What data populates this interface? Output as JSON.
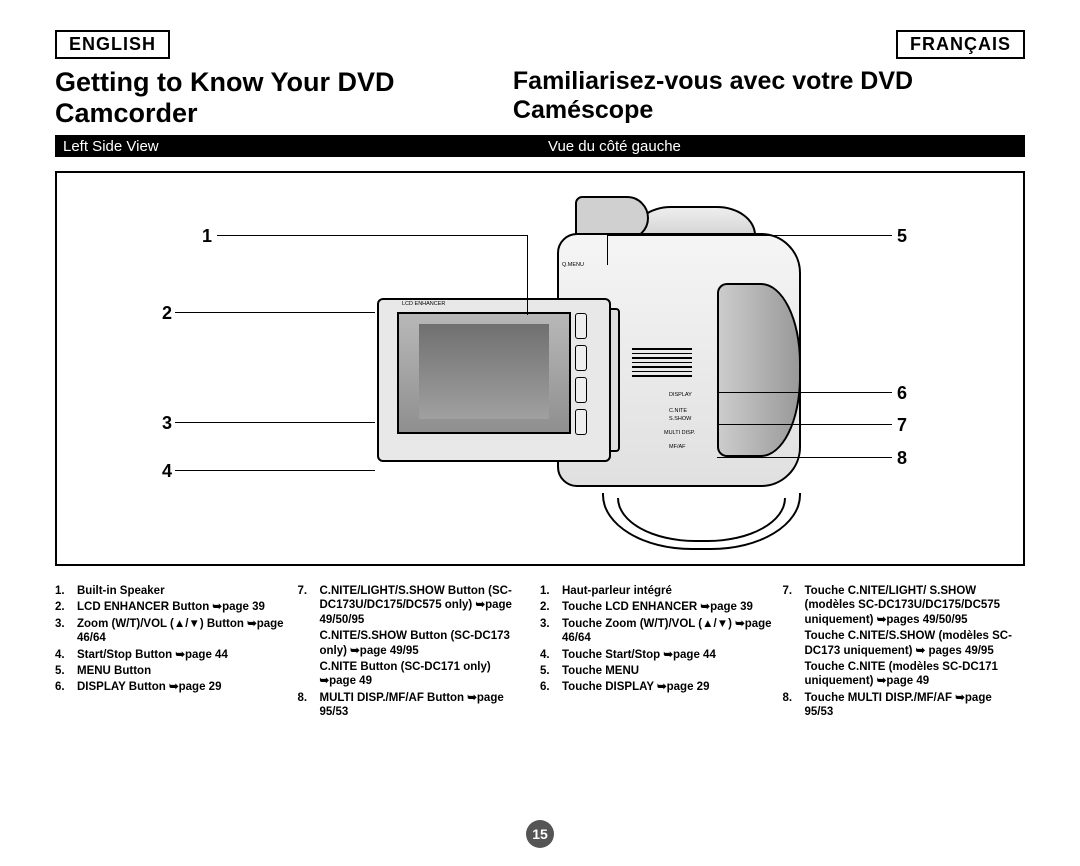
{
  "lang_en": "ENGLISH",
  "lang_fr": "FRANÇAIS",
  "heading_en": "Getting to Know Your DVD Camcorder",
  "heading_fr": "Familiarisez-vous avec votre DVD Caméscope",
  "subhead_en": "Left Side View",
  "subhead_fr": "Vue du côté gauche",
  "page_number": "15",
  "callouts": {
    "n1": "1",
    "n2": "2",
    "n3": "3",
    "n4": "4",
    "n5": "5",
    "n6": "6",
    "n7": "7",
    "n8": "8"
  },
  "tiny": {
    "lcd_enh": "LCD ENHANCER",
    "qmenu": "Q.MENU",
    "display": "DISPLAY",
    "cnite": "C.NITE",
    "sshow": "S.SHOW",
    "multi": "MULTI DISP.",
    "mfaf": "MF/AF"
  },
  "legend_en_col1": [
    {
      "n": "1.",
      "t": "Built-in Speaker"
    },
    {
      "n": "2.",
      "t": "LCD ENHANCER Button ➥page 39"
    },
    {
      "n": "3.",
      "t": "Zoom (W/T)/VOL (▲/▼) Button ➥page 46/64"
    },
    {
      "n": "4.",
      "t": "Start/Stop Button ➥page 44"
    },
    {
      "n": "5.",
      "t": "MENU Button"
    },
    {
      "n": "6.",
      "t": "DISPLAY Button ➥page 29"
    }
  ],
  "legend_en_col2": [
    {
      "n": "7.",
      "t": "C.NITE/LIGHT/S.SHOW Button (SC-DC173U/DC175/DC575 only) ➥page 49/50/95"
    },
    {
      "n": "",
      "t": "C.NITE/S.SHOW Button (SC-DC173 only) ➥page 49/95"
    },
    {
      "n": "",
      "t": "C.NITE Button (SC-DC171 only) ➥page 49"
    },
    {
      "n": "8.",
      "t": "MULTI DISP./MF/AF Button ➥page 95/53"
    }
  ],
  "legend_fr_col1": [
    {
      "n": "1.",
      "t": "Haut-parleur intégré"
    },
    {
      "n": "2.",
      "t": "Touche LCD ENHANCER ➥page 39"
    },
    {
      "n": "3.",
      "t": "Touche Zoom (W/T)/VOL (▲/▼) ➥page 46/64"
    },
    {
      "n": "4.",
      "t": "Touche Start/Stop ➥page 44"
    },
    {
      "n": "5.",
      "t": "Touche MENU"
    },
    {
      "n": "6.",
      "t": "Touche DISPLAY ➥page 29"
    }
  ],
  "legend_fr_col2": [
    {
      "n": "7.",
      "t": "Touche C.NITE/LIGHT/ S.SHOW (modèles SC-DC173U/DC175/DC575 uniquement) ➥pages 49/50/95"
    },
    {
      "n": "",
      "t": "Touche C.NITE/S.SHOW (modèles SC-DC173 uniquement) ➥ pages 49/95"
    },
    {
      "n": "",
      "t": "Touche C.NITE (modèles SC-DC171 uniquement) ➥page 49"
    },
    {
      "n": "8.",
      "t": "Touche MULTI DISP./MF/AF ➥page 95/53"
    }
  ]
}
